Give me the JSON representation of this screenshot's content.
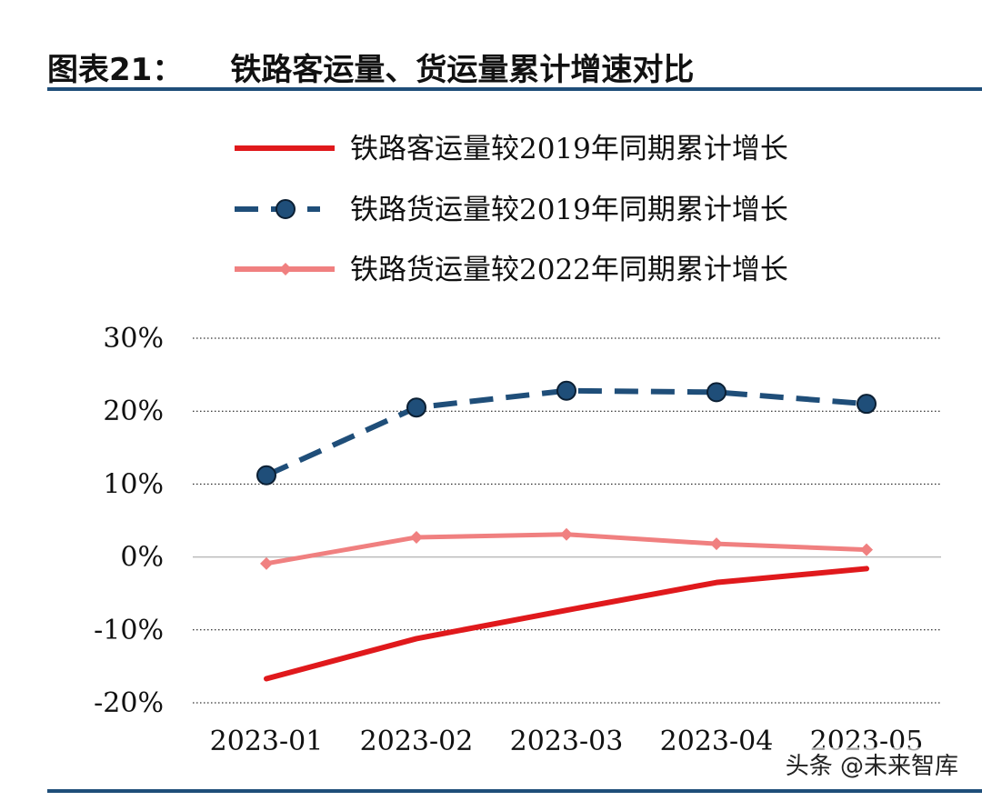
{
  "header": {
    "figure_label": "图表21：",
    "title": "铁路客运量、货运量累计增速对比"
  },
  "watermark": "头条 @未来智库",
  "colors": {
    "rule": "#1f4e79",
    "grid": "#000000",
    "zero_line": "#bbbbbb"
  },
  "chart_data": {
    "type": "line",
    "categories": [
      "2023-01",
      "2023-02",
      "2023-03",
      "2023-04",
      "2023-05"
    ],
    "ylim": [
      -20,
      30
    ],
    "yticks": [
      30,
      20,
      10,
      0,
      -10,
      -20
    ],
    "ytick_labels": [
      "30%",
      "20%",
      "10%",
      "0%",
      "-10%",
      "-20%"
    ],
    "legend_position": "top",
    "grid": "horizontal-dotted",
    "series": [
      {
        "name": "铁路客运量较2019年同期累计增长",
        "values": [
          -16.7,
          -11.2,
          -7.3,
          -3.5,
          -1.6
        ],
        "color": "#e0191c",
        "style": "solid",
        "marker": "none"
      },
      {
        "name": "铁路货运量较2019年同期累计增长",
        "values": [
          11.2,
          20.5,
          22.8,
          22.6,
          21.0
        ],
        "color": "#1f4e79",
        "style": "dashed",
        "marker": "circle"
      },
      {
        "name": "铁路货运量较2022年同期累计增长",
        "values": [
          -0.9,
          2.7,
          3.1,
          1.8,
          1.0
        ],
        "color": "#f08080",
        "style": "solid",
        "marker": "diamond"
      }
    ]
  }
}
